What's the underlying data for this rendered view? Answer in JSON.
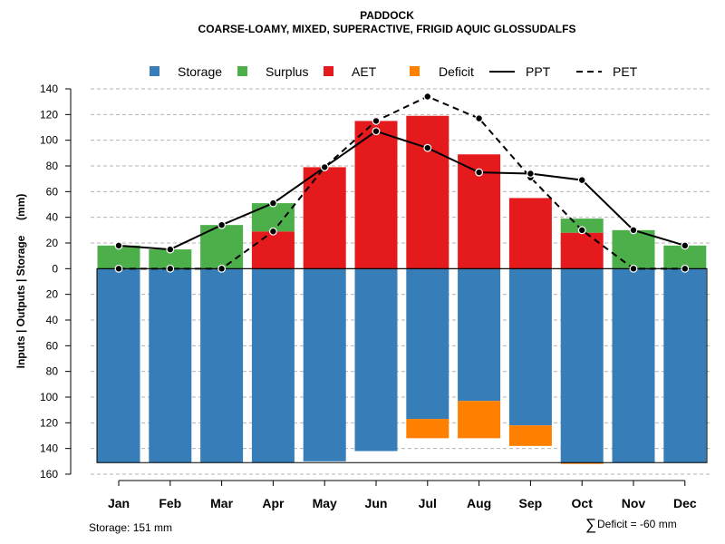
{
  "chart_data": {
    "type": "bar",
    "title": "PADDOCK",
    "subtitle": "COARSE-LOAMY, MIXED, SUPERACTIVE, FRIGID AQUIC GLOSSUDALFS",
    "ylabel": "Inputs | Outputs | Storage     (mm)",
    "ylim": [
      -160,
      140
    ],
    "y_ticks": [
      140,
      120,
      100,
      80,
      60,
      40,
      20,
      0,
      -20,
      -40,
      -60,
      -80,
      -100,
      -120,
      -140,
      -160
    ],
    "y_tick_labels": [
      "140",
      "120",
      "100",
      "80",
      "60",
      "40",
      "20",
      "0",
      "20",
      "40",
      "60",
      "80",
      "100",
      "120",
      "140",
      "160"
    ],
    "grid": true,
    "legend_position": "top",
    "categories": [
      "Jan",
      "Feb",
      "Mar",
      "Apr",
      "May",
      "Jun",
      "Jul",
      "Aug",
      "Sep",
      "Oct",
      "Nov",
      "Dec"
    ],
    "series": [
      {
        "name": "Storage",
        "kind": "bar",
        "values": [
          151,
          151,
          151,
          151,
          150,
          142,
          117,
          103,
          122,
          151,
          151,
          151
        ]
      },
      {
        "name": "Surplus",
        "kind": "bar",
        "values": [
          18,
          15,
          34,
          22,
          0,
          0,
          0,
          0,
          0,
          11,
          30,
          18
        ]
      },
      {
        "name": "AET",
        "kind": "bar",
        "values": [
          0,
          0,
          0,
          29,
          79,
          115,
          119,
          89,
          55,
          28,
          0,
          0
        ]
      },
      {
        "name": "Deficit",
        "kind": "bar",
        "values": [
          0,
          0,
          0,
          0,
          0,
          0,
          15,
          29,
          16,
          1,
          0,
          0
        ]
      },
      {
        "name": "PPT",
        "kind": "line",
        "values": [
          18,
          15,
          34,
          51,
          79,
          107,
          94,
          75,
          74,
          69,
          30,
          18
        ]
      },
      {
        "name": "PET",
        "kind": "line",
        "values": [
          0,
          0,
          0,
          29,
          79,
          115,
          134,
          117,
          71,
          30,
          0,
          0
        ]
      }
    ],
    "water_holding_capacity": 151,
    "annotations": {
      "storage": "Storage: 151 mm",
      "deficit_symbol": "∑",
      "deficit": "Deficit = -60 mm"
    }
  },
  "colors": {
    "storage": "#377EB8",
    "surplus": "#4DAF4A",
    "aet": "#E41A1C",
    "deficit": "#FF7F00",
    "grid": "#b3b3b3",
    "line": "#000000"
  },
  "legend": [
    {
      "key": "storage",
      "label": "Storage",
      "type": "box"
    },
    {
      "key": "surplus",
      "label": "Surplus",
      "type": "box"
    },
    {
      "key": "aet",
      "label": "AET",
      "type": "box"
    },
    {
      "key": "deficit",
      "label": "Deficit",
      "type": "box"
    },
    {
      "key": "ppt",
      "label": "PPT",
      "type": "solid"
    },
    {
      "key": "pet",
      "label": "PET",
      "type": "dashed"
    }
  ]
}
